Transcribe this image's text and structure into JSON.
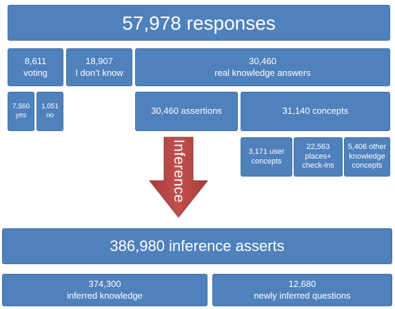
{
  "total": "57,978 responses",
  "voting": {
    "number": "8,611",
    "label": "voting"
  },
  "dont_know": {
    "number": "18,907",
    "label": "I don’t know"
  },
  "real_knowledge": {
    "number": "30,460",
    "label": "real knowledge answers"
  },
  "yes": {
    "number": "7,560",
    "label": "yes"
  },
  "no": {
    "number": "1,051",
    "label": "no"
  },
  "assertions": "30,460 assertions",
  "concepts": "31,140 concepts",
  "user_concepts": {
    "line1": "3,171 user",
    "line2": "concepts"
  },
  "places": {
    "line1": "22,563",
    "line2": "places+",
    "line3": "check-ins"
  },
  "other_concepts": {
    "line1": "5,406 other",
    "line2": "knowledge",
    "line3": "concepts"
  },
  "arrow_label": "Inference",
  "inference_asserts": "386,980 inference asserts",
  "inferred_knowledge": {
    "number": "374,300",
    "label": "inferred knowledge"
  },
  "inferred_questions": {
    "number": "12,680",
    "label": "newly inferred questions"
  },
  "colors": {
    "box_fill": "#4f81bd",
    "box_border": "#41719c",
    "arrow_fill": "#c0504d",
    "arrow_border": "#8c3836",
    "text": "#ffffff"
  }
}
